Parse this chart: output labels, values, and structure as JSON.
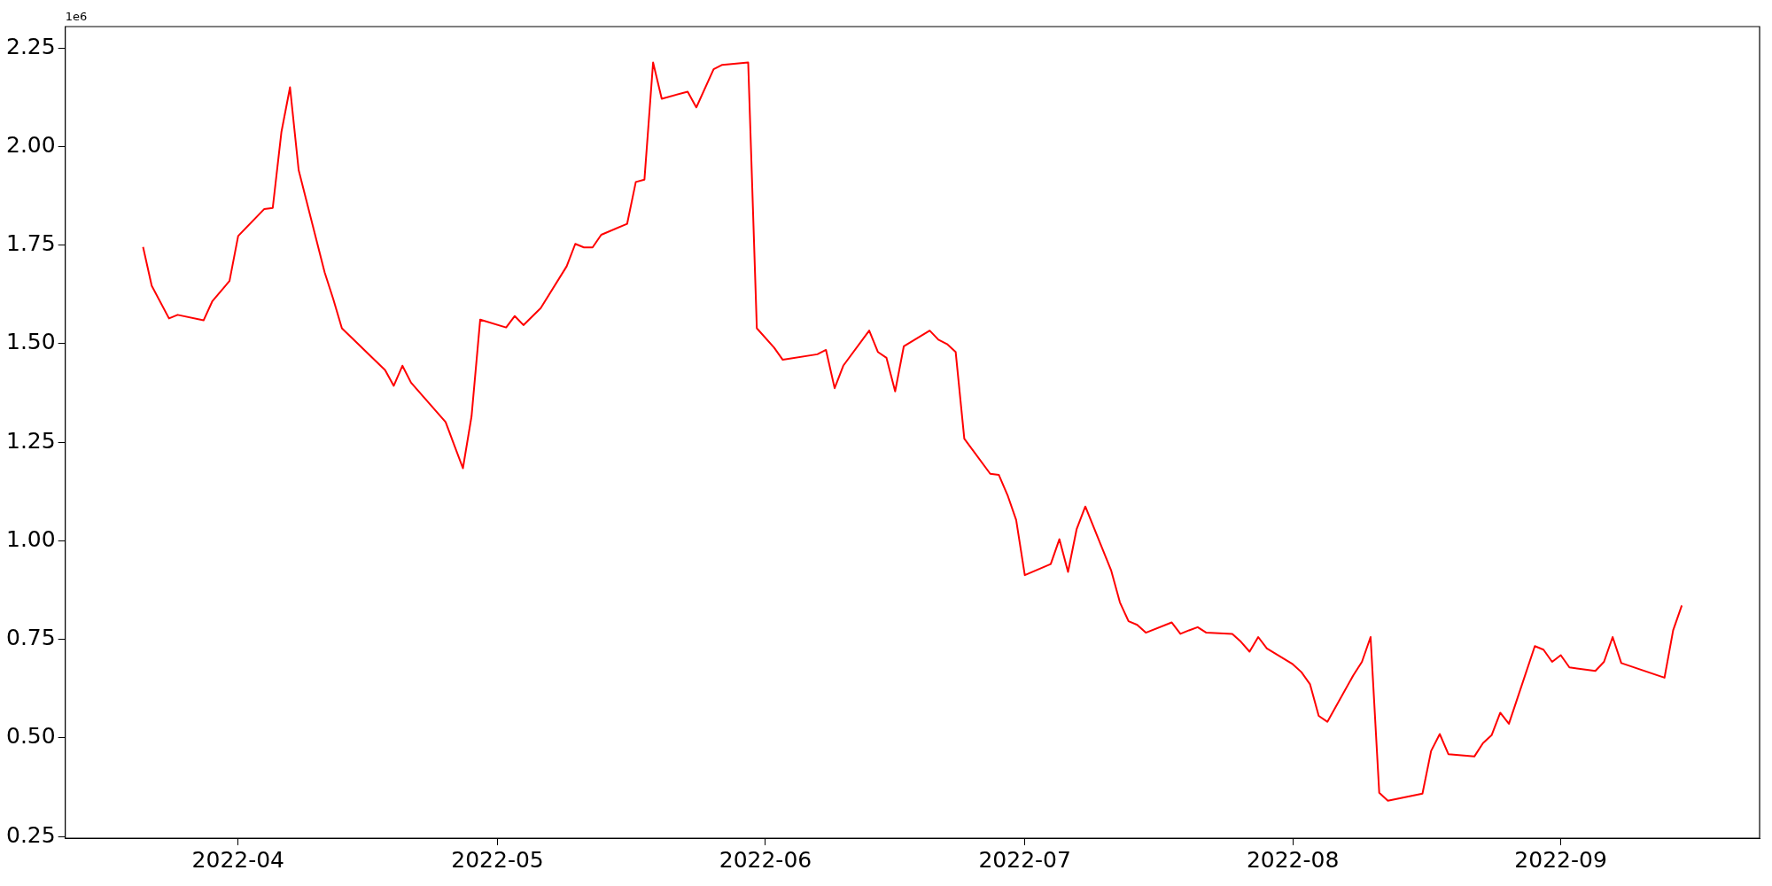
{
  "chart_data": {
    "type": "line",
    "annotations": [
      "1e6"
    ],
    "grid": false,
    "legend": false,
    "marker": "none",
    "line_style": "solid",
    "xlim": [
      "2022-03-12",
      "2022-09-24"
    ],
    "ylim": [
      0.246,
      2.304
    ],
    "xticks": [
      "2022-04",
      "2022-05",
      "2022-06",
      "2022-07",
      "2022-08",
      "2022-09"
    ],
    "yticks": [
      0.25,
      {
        "value": 0.5,
        "label": "0.50"
      },
      0.75,
      {
        "value": 1,
        "label": "1.00"
      },
      1.25,
      {
        "value": 1.5,
        "label": "1.50"
      },
      1.75,
      {
        "value": 2,
        "label": "2.00"
      },
      2.25
    ],
    "x": [
      "2022-03-21",
      "2022-03-22",
      "2022-03-24",
      "2022-03-25",
      "2022-03-28",
      "2022-03-29",
      "2022-03-31",
      "2022-04-01",
      "2022-04-04",
      "2022-04-05",
      "2022-04-06",
      "2022-04-07",
      "2022-04-08",
      "2022-04-11",
      "2022-04-12",
      "2022-04-13",
      "2022-04-18",
      "2022-04-19",
      "2022-04-20",
      "2022-04-21",
      "2022-04-25",
      "2022-04-27",
      "2022-04-28",
      "2022-04-29",
      "2022-05-02",
      "2022-05-03",
      "2022-05-04",
      "2022-05-06",
      "2022-05-09",
      "2022-05-10",
      "2022-05-11",
      "2022-05-12",
      "2022-05-13",
      "2022-05-16",
      "2022-05-17",
      "2022-05-18",
      "2022-05-19",
      "2022-05-20",
      "2022-05-23",
      "2022-05-24",
      "2022-05-26",
      "2022-05-27",
      "2022-05-30",
      "2022-05-31",
      "2022-06-02",
      "2022-06-03",
      "2022-06-07",
      "2022-06-08",
      "2022-06-09",
      "2022-06-10",
      "2022-06-13",
      "2022-06-14",
      "2022-06-15",
      "2022-06-16",
      "2022-06-17",
      "2022-06-20",
      "2022-06-21",
      "2022-06-22",
      "2022-06-23",
      "2022-06-24",
      "2022-06-27",
      "2022-06-28",
      "2022-06-29",
      "2022-06-30",
      "2022-07-01",
      "2022-07-04",
      "2022-07-05",
      "2022-07-06",
      "2022-07-07",
      "2022-07-08",
      "2022-07-11",
      "2022-07-12",
      "2022-07-13",
      "2022-07-14",
      "2022-07-15",
      "2022-07-18",
      "2022-07-19",
      "2022-07-20",
      "2022-07-21",
      "2022-07-22",
      "2022-07-25",
      "2022-07-26",
      "2022-07-27",
      "2022-07-28",
      "2022-07-29",
      "2022-08-01",
      "2022-08-02",
      "2022-08-03",
      "2022-08-04",
      "2022-08-05",
      "2022-08-08",
      "2022-08-09",
      "2022-08-10",
      "2022-08-11",
      "2022-08-12",
      "2022-08-16",
      "2022-08-17",
      "2022-08-18",
      "2022-08-19",
      "2022-08-22",
      "2022-08-23",
      "2022-08-24",
      "2022-08-25",
      "2022-08-26",
      "2022-08-29",
      "2022-08-30",
      "2022-08-31",
      "2022-09-01",
      "2022-09-02",
      "2022-09-05",
      "2022-09-06",
      "2022-09-07",
      "2022-09-08",
      "2022-09-13",
      "2022-09-14",
      "2022-09-15"
    ],
    "series": [
      {
        "color": "#ff0000",
        "values": [
          1.745,
          1.647,
          1.564,
          1.573,
          1.559,
          1.607,
          1.659,
          1.773,
          1.841,
          1.844,
          2.036,
          2.15,
          1.94,
          1.681,
          1.613,
          1.539,
          1.433,
          1.393,
          1.444,
          1.401,
          1.301,
          1.184,
          1.316,
          1.561,
          1.541,
          1.57,
          1.547,
          1.59,
          1.696,
          1.753,
          1.744,
          1.744,
          1.776,
          1.804,
          1.91,
          1.916,
          2.213,
          2.121,
          2.139,
          2.099,
          2.196,
          2.207,
          2.213,
          1.539,
          1.49,
          1.459,
          1.473,
          1.484,
          1.387,
          1.444,
          1.533,
          1.479,
          1.464,
          1.379,
          1.493,
          1.533,
          1.51,
          1.499,
          1.479,
          1.259,
          1.17,
          1.167,
          1.116,
          1.053,
          0.913,
          0.941,
          1.004,
          0.921,
          1.03,
          1.087,
          0.924,
          0.844,
          0.796,
          0.787,
          0.767,
          0.793,
          0.764,
          0.773,
          0.781,
          0.767,
          0.764,
          0.744,
          0.719,
          0.756,
          0.727,
          0.687,
          0.667,
          0.636,
          0.556,
          0.541,
          0.659,
          0.693,
          0.756,
          0.361,
          0.341,
          0.359,
          0.467,
          0.51,
          0.459,
          0.453,
          0.487,
          0.507,
          0.564,
          0.536,
          0.733,
          0.724,
          0.693,
          0.71,
          0.679,
          0.67,
          0.693,
          0.756,
          0.69,
          0.653,
          0.773,
          0.836
        ]
      }
    ]
  }
}
